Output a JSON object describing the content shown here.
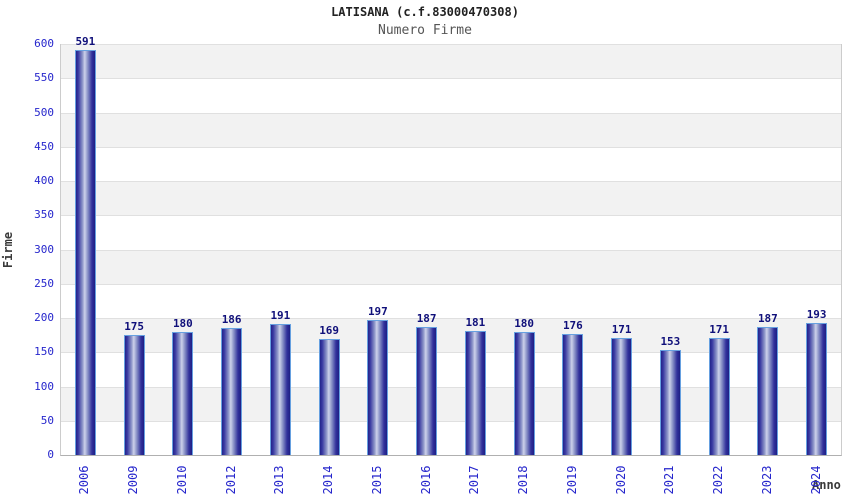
{
  "chart_data": {
    "type": "bar",
    "title": "LATISANA (c.f.83000470308)",
    "subtitle": "Numero Firme",
    "xlabel": "Anno",
    "ylabel": "Firme",
    "categories": [
      "2006",
      "2009",
      "2010",
      "2012",
      "2013",
      "2014",
      "2015",
      "2016",
      "2017",
      "2018",
      "2019",
      "2020",
      "2021",
      "2022",
      "2023",
      "2024"
    ],
    "values": [
      591,
      175,
      180,
      186,
      191,
      169,
      197,
      187,
      181,
      180,
      176,
      171,
      153,
      171,
      187,
      193
    ],
    "ylim": [
      0,
      600
    ],
    "ytick_step": 50,
    "grid": true,
    "legend": "none",
    "band_fill": "alternating gray/white horizontal bands starting gray at top",
    "colors": {
      "title": "#222222",
      "subtitle": "#555555",
      "tick_label": "#2626cc",
      "value_label": "#10107a",
      "axis_label": "#3a3a3a",
      "band_gray": "#f2f2f2",
      "gridline": "#e0e0e0",
      "axis_line": "#b0b0b0",
      "bar_outline": "#66a0e0",
      "bar_gradient": [
        "#23238b 0%",
        "#3a3aa2 12%",
        "#8890c6 33%",
        "#ccd1ea 46%",
        "#8890c6 62%",
        "#32329c 84%",
        "#1e1e84 100%"
      ]
    }
  }
}
